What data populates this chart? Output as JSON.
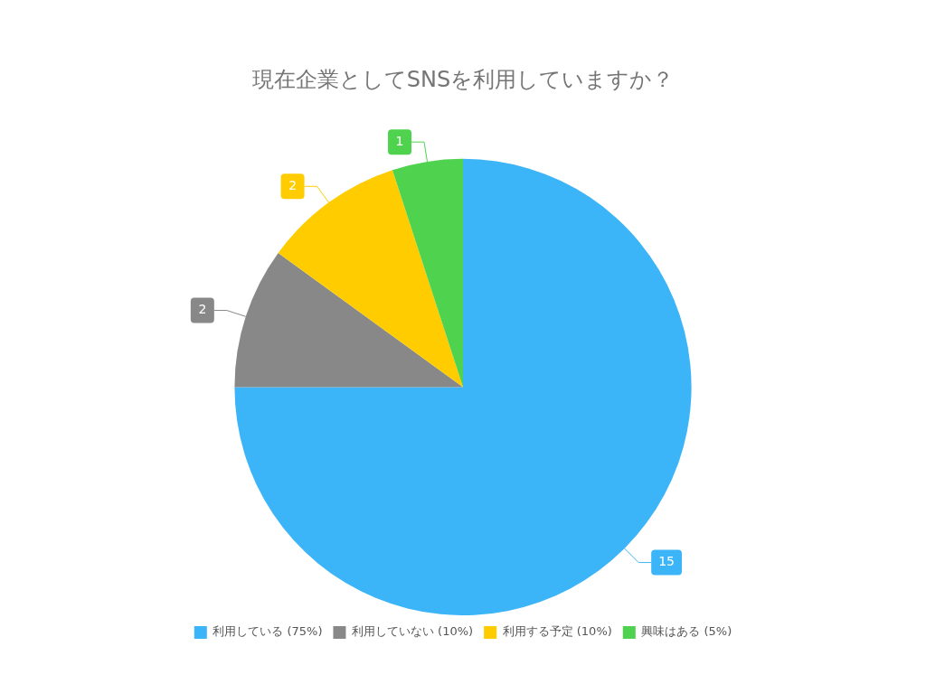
{
  "chart_data": {
    "type": "pie",
    "title": "現在企業としてSNSを利用していますか？",
    "categories": [
      "利用している (75%)",
      "利用していない (10%)",
      "利用する予定 (10%)",
      "興味はある (5%)"
    ],
    "values": [
      15,
      2,
      2,
      1
    ],
    "colors": [
      "#3bb4f8",
      "#888888",
      "#ffcc00",
      "#4fd34f"
    ],
    "data_labels": true,
    "legend": "bottom"
  }
}
